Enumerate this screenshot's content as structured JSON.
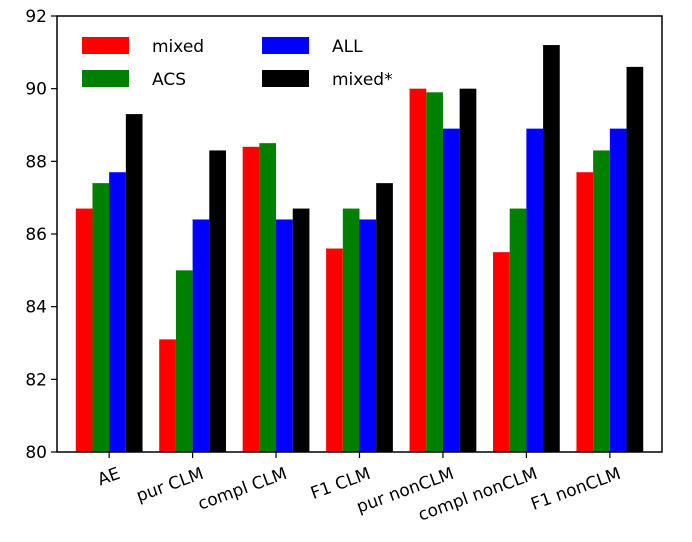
{
  "chart_data": {
    "type": "bar",
    "title": "",
    "xlabel": "",
    "ylabel": "",
    "ylim": [
      80,
      92
    ],
    "yticks": [
      80,
      82,
      84,
      86,
      88,
      90,
      92
    ],
    "ytick_labels": [
      "80",
      "82",
      "84",
      "86",
      "88",
      "90",
      "92"
    ],
    "grid": false,
    "legend_position": "top-left",
    "legend_columns": 2,
    "categories": [
      "AE",
      "pur CLM",
      "compl CLM",
      "F1 CLM",
      "pur nonCLM",
      "compl nonCLM",
      "F1 nonCLM"
    ],
    "series": [
      {
        "name": "mixed",
        "color": "#ff0000",
        "values": [
          86.7,
          83.1,
          88.4,
          85.6,
          90.0,
          85.5,
          87.7
        ]
      },
      {
        "name": "ACS",
        "color": "#008000",
        "values": [
          87.4,
          85.0,
          88.5,
          86.7,
          89.9,
          86.7,
          88.3
        ]
      },
      {
        "name": "ALL",
        "color": "#0000ff",
        "values": [
          87.7,
          86.4,
          86.4,
          86.4,
          88.9,
          88.9,
          88.9
        ]
      },
      {
        "name": "mixed*",
        "color": "#000000",
        "values": [
          89.3,
          88.3,
          86.7,
          87.4,
          90.0,
          91.2,
          90.6
        ]
      }
    ]
  }
}
